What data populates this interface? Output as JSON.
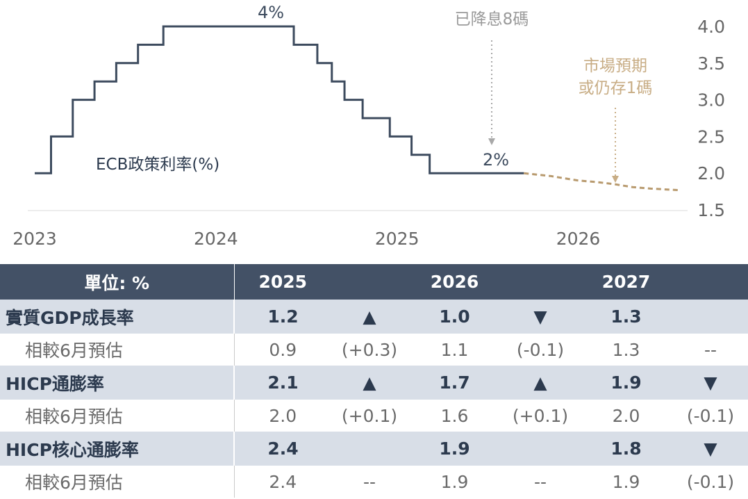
{
  "chart_data": {
    "type": "line",
    "x_ticks": [
      "2023",
      "2024",
      "2025",
      "2026"
    ],
    "y_ticks": [
      "4.0",
      "3.5",
      "3.0",
      "2.5",
      "2.0",
      "1.5"
    ],
    "ylim": [
      1.5,
      4.0
    ],
    "x_range": [
      2023.0,
      2026.55
    ],
    "series": [
      {
        "name": "ECB政策利率(%)",
        "style": "step",
        "color": "#3d4b5e",
        "x": [
          2023.0,
          2023.09,
          2023.21,
          2023.33,
          2023.45,
          2023.57,
          2023.71,
          2024.43,
          2024.56,
          2024.64,
          2024.71,
          2024.81,
          2024.96,
          2025.08,
          2025.18,
          2025.29,
          2025.42,
          2025.7
        ],
        "values": [
          2.0,
          2.5,
          3.0,
          3.25,
          3.5,
          3.75,
          4.0,
          3.75,
          3.5,
          3.25,
          3.0,
          2.75,
          2.5,
          2.25,
          2.0,
          2.0,
          2.0,
          2.0
        ]
      },
      {
        "name": "",
        "style": "dashed",
        "color": "#b89a6e",
        "x": [
          2025.7,
          2025.85,
          2026.0,
          2026.1,
          2026.2,
          2026.3,
          2026.4,
          2026.55
        ],
        "values": [
          2.0,
          1.96,
          1.9,
          1.88,
          1.85,
          1.81,
          1.79,
          1.77
        ]
      }
    ],
    "annotations": {
      "peak_label": "4%",
      "current_label": "2%",
      "cut_note": "已降息8碼",
      "market_note_line1": "市場預期",
      "market_note_line2": "或仍存1碼",
      "series_label": "ECB政策利率(%)"
    },
    "colors": {
      "line": "#3d4b5e",
      "forecast": "#b89a6e",
      "axis_text": "#555555",
      "grey_note": "#9a9a9a",
      "gold_note": "#c8ad85"
    }
  },
  "table": {
    "header": {
      "unit": "單位: %",
      "y2025": "2025",
      "y2026": "2026",
      "y2027": "2027"
    },
    "rows": [
      {
        "label": "實質GDP成長率",
        "type": "main",
        "v2025": "1.2",
        "a2025": "▲",
        "a2025_dir": "up",
        "v2026": "1.0",
        "a2026": "▼",
        "a2026_dir": "down",
        "v2027": "1.3",
        "a2027": "",
        "a2027_dir": ""
      },
      {
        "label": "相較6月預估",
        "type": "sub",
        "v2025": "0.9",
        "a2025": "(+0.3)",
        "v2026": "1.1",
        "a2026": "(-0.1)",
        "v2027": "1.3",
        "a2027": "--"
      },
      {
        "label": "HICP通膨率",
        "type": "main",
        "v2025": "2.1",
        "a2025": "▲",
        "a2025_dir": "up",
        "v2026": "1.7",
        "a2026": "▲",
        "a2026_dir": "up",
        "v2027": "1.9",
        "a2027": "▼",
        "a2027_dir": "down"
      },
      {
        "label": "相較6月預估",
        "type": "sub",
        "v2025": "2.0",
        "a2025": "(+0.1)",
        "v2026": "1.6",
        "a2026": "(+0.1)",
        "v2027": "2.0",
        "a2027": "(-0.1)"
      },
      {
        "label": "HICP核心通膨率",
        "type": "main",
        "v2025": "2.4",
        "a2025": "",
        "a2025_dir": "",
        "v2026": "1.9",
        "a2026": "",
        "a2026_dir": "",
        "v2027": "1.8",
        "a2027": "▼",
        "a2027_dir": "down"
      },
      {
        "label": "相較6月預估",
        "type": "sub",
        "v2025": "2.4",
        "a2025": "--",
        "v2026": "1.9",
        "a2026": "--",
        "v2027": "1.9",
        "a2027": "(-0.1)"
      }
    ]
  }
}
